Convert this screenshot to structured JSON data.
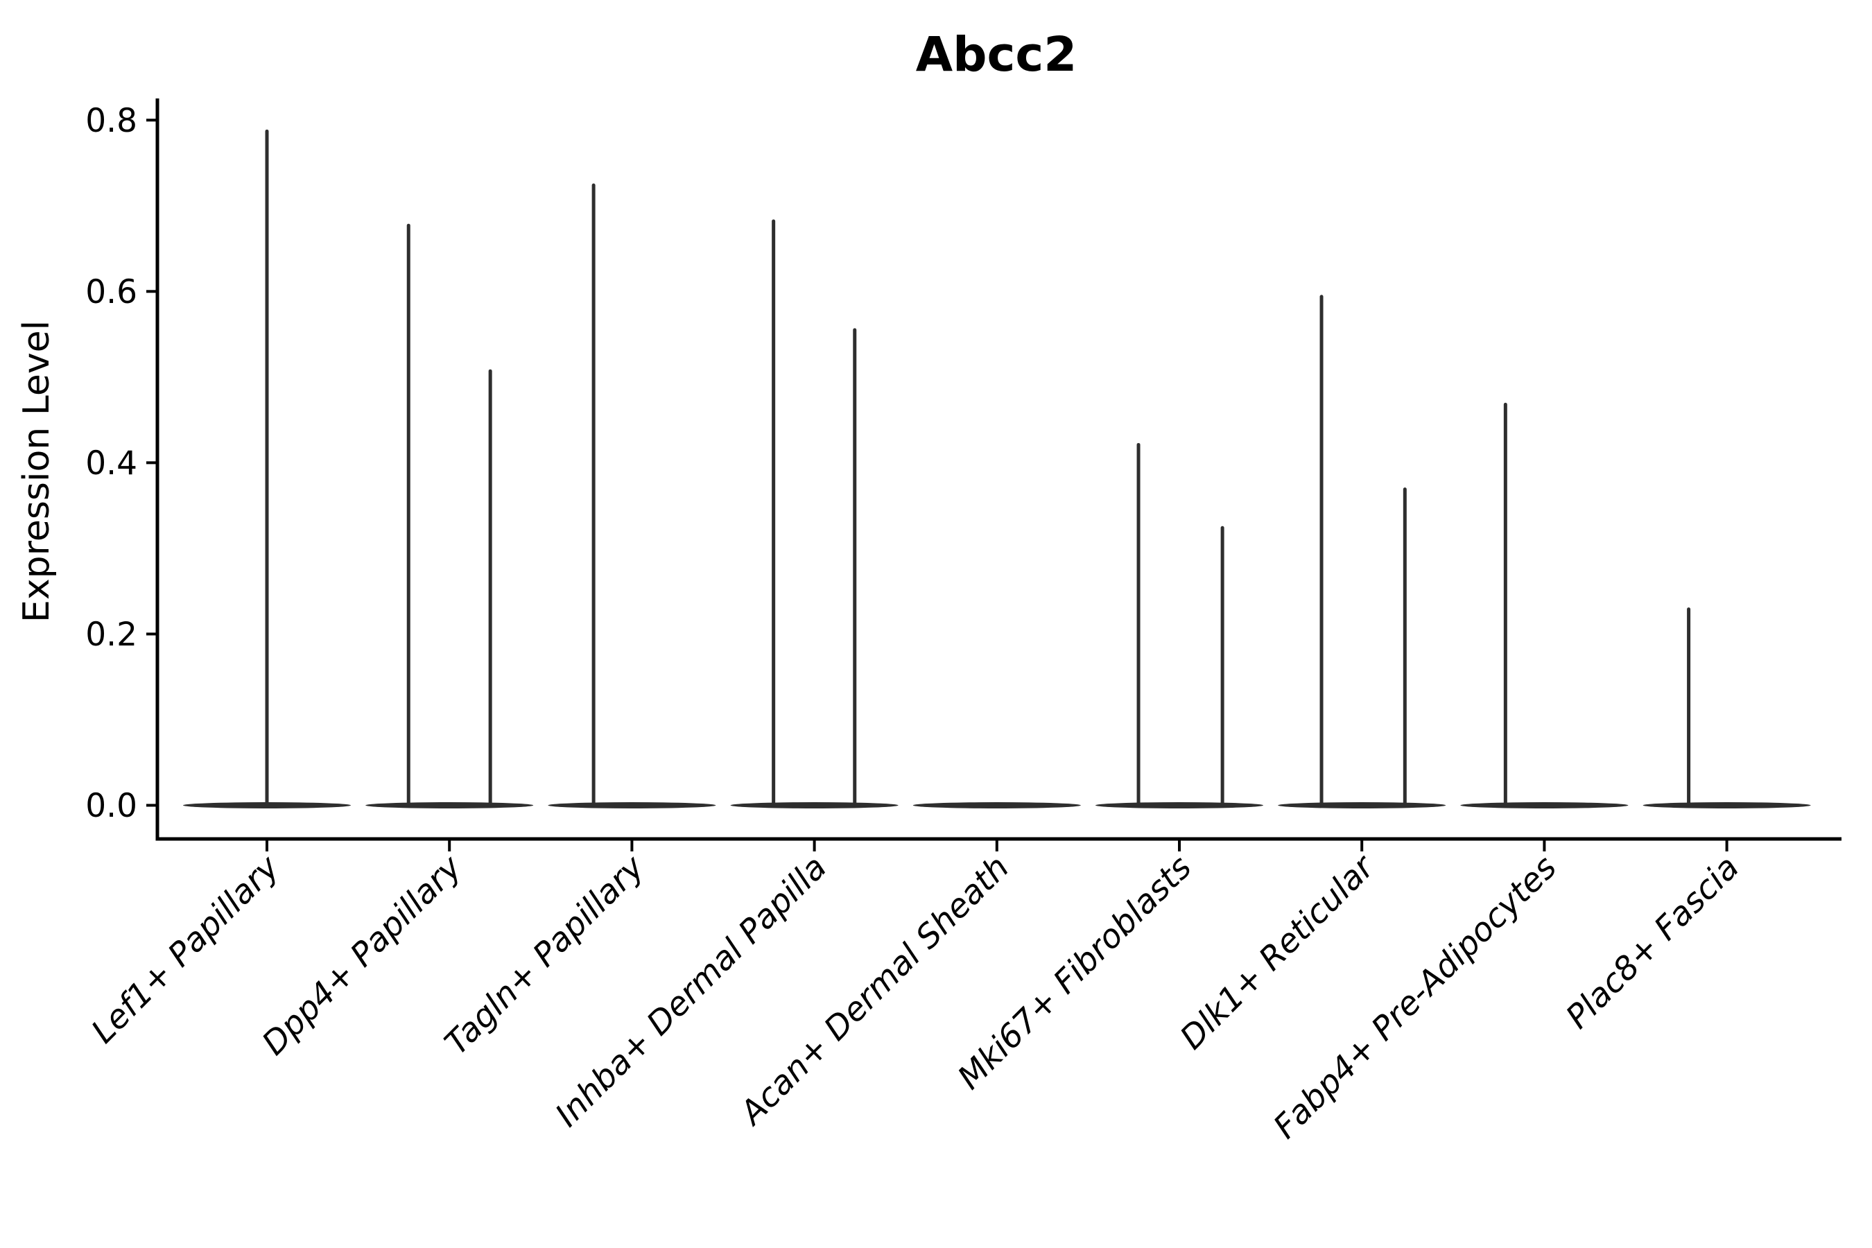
{
  "chart_data": {
    "type": "violin",
    "title": "Abcc2",
    "xlabel": "",
    "ylabel": "Expression Level",
    "ytick_labels": [
      "0.0",
      "0.2",
      "0.4",
      "0.6",
      "0.8"
    ],
    "yticks": [
      0.0,
      0.2,
      0.4,
      0.6,
      0.8
    ],
    "ylim": [
      -0.033,
      0.825
    ],
    "x_rotation": 45,
    "grid": "off",
    "legend": "none",
    "categories": [
      "Lef1+ Papillary",
      "Dpp4+ Papillary",
      "Tagln+ Papillary",
      "Inhba+ Dermal Papilla",
      "Acan+ Dermal Sheath",
      "Mki67+ Fibroblasts",
      "Dlk1+ Reticular",
      "Fabp4+ Pre-Adipocytes",
      "Plac8+ Fascia"
    ],
    "violins": [
      {
        "category": "Lef1+ Papillary",
        "base_at_zero": true,
        "spikes": [
          {
            "value": 0.787,
            "x_offset_frac": 0.0
          }
        ]
      },
      {
        "category": "Dpp4+ Papillary",
        "base_at_zero": true,
        "spikes": [
          {
            "value": 0.677,
            "x_offset_frac": -0.224
          },
          {
            "value": 0.507,
            "x_offset_frac": 0.224
          }
        ]
      },
      {
        "category": "Tagln+ Papillary",
        "base_at_zero": true,
        "spikes": [
          {
            "value": 0.724,
            "x_offset_frac": -0.21
          }
        ]
      },
      {
        "category": "Inhba+ Dermal Papilla",
        "base_at_zero": true,
        "spikes": [
          {
            "value": 0.682,
            "x_offset_frac": -0.224
          },
          {
            "value": 0.555,
            "x_offset_frac": 0.221
          }
        ]
      },
      {
        "category": "Acan+ Dermal Sheath",
        "base_at_zero": true,
        "spikes": []
      },
      {
        "category": "Mki67+ Fibroblasts",
        "base_at_zero": true,
        "spikes": [
          {
            "value": 0.421,
            "x_offset_frac": -0.224
          },
          {
            "value": 0.324,
            "x_offset_frac": 0.236
          }
        ]
      },
      {
        "category": "Dlk1+ Reticular",
        "base_at_zero": true,
        "spikes": [
          {
            "value": 0.594,
            "x_offset_frac": -0.221
          },
          {
            "value": 0.369,
            "x_offset_frac": 0.236
          }
        ]
      },
      {
        "category": "Fabp4+ Pre-Adipocytes",
        "base_at_zero": true,
        "spikes": [
          {
            "value": 0.468,
            "x_offset_frac": -0.213
          }
        ]
      },
      {
        "category": "Plac8+ Fascia",
        "base_at_zero": true,
        "spikes": [
          {
            "value": 0.229,
            "x_offset_frac": -0.209
          }
        ]
      }
    ],
    "colors": {
      "violin": "#2e2e2e",
      "axis": "#000000",
      "text": "#000000",
      "background": "#ffffff"
    }
  }
}
